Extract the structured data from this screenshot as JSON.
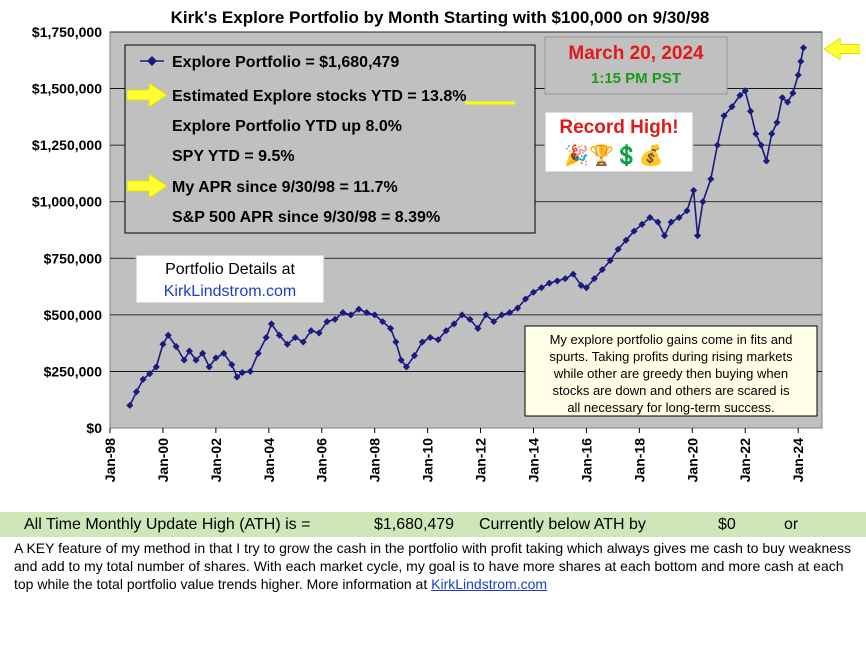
{
  "chart_data": {
    "type": "line",
    "title": "Kirk's Explore Portfolio by Month Starting with $100,000 on 9/30/98",
    "ylim": [
      0,
      1750000
    ],
    "yticks": [
      "$0",
      "$250,000",
      "$500,000",
      "$750,000",
      "$1,000,000",
      "$1,250,000",
      "$1,500,000",
      "$1,750,000"
    ],
    "xticks": [
      "Jan-98",
      "Jan-00",
      "Jan-02",
      "Jan-04",
      "Jan-06",
      "Jan-08",
      "Jan-10",
      "Jan-12",
      "Jan-14",
      "Jan-16",
      "Jan-18",
      "Jan-20",
      "Jan-22",
      "Jan-24"
    ],
    "xlim_years": [
      1998,
      2024.9
    ],
    "grid": "horizontal",
    "series": [
      {
        "name": "Explore Portfolio",
        "color": "#1a1a80",
        "points": [
          [
            1998.75,
            100000
          ],
          [
            1999.0,
            160000
          ],
          [
            1999.25,
            215000
          ],
          [
            1999.5,
            240000
          ],
          [
            1999.75,
            270000
          ],
          [
            2000.0,
            370000
          ],
          [
            2000.2,
            410000
          ],
          [
            2000.5,
            360000
          ],
          [
            2000.8,
            300000
          ],
          [
            2001.0,
            340000
          ],
          [
            2001.25,
            300000
          ],
          [
            2001.5,
            330000
          ],
          [
            2001.75,
            270000
          ],
          [
            2002.0,
            310000
          ],
          [
            2002.3,
            330000
          ],
          [
            2002.6,
            280000
          ],
          [
            2002.8,
            225000
          ],
          [
            2003.0,
            245000
          ],
          [
            2003.3,
            250000
          ],
          [
            2003.6,
            330000
          ],
          [
            2003.9,
            400000
          ],
          [
            2004.1,
            460000
          ],
          [
            2004.4,
            410000
          ],
          [
            2004.7,
            370000
          ],
          [
            2005.0,
            400000
          ],
          [
            2005.3,
            380000
          ],
          [
            2005.6,
            430000
          ],
          [
            2005.9,
            420000
          ],
          [
            2006.2,
            470000
          ],
          [
            2006.5,
            480000
          ],
          [
            2006.8,
            510000
          ],
          [
            2007.1,
            500000
          ],
          [
            2007.4,
            525000
          ],
          [
            2007.7,
            510000
          ],
          [
            2008.0,
            500000
          ],
          [
            2008.3,
            470000
          ],
          [
            2008.6,
            440000
          ],
          [
            2008.8,
            380000
          ],
          [
            2009.0,
            300000
          ],
          [
            2009.2,
            270000
          ],
          [
            2009.5,
            320000
          ],
          [
            2009.8,
            380000
          ],
          [
            2010.1,
            400000
          ],
          [
            2010.4,
            390000
          ],
          [
            2010.7,
            430000
          ],
          [
            2011.0,
            460000
          ],
          [
            2011.3,
            500000
          ],
          [
            2011.6,
            480000
          ],
          [
            2011.9,
            440000
          ],
          [
            2012.2,
            500000
          ],
          [
            2012.5,
            470000
          ],
          [
            2012.8,
            500000
          ],
          [
            2013.1,
            510000
          ],
          [
            2013.4,
            530000
          ],
          [
            2013.7,
            570000
          ],
          [
            2014.0,
            600000
          ],
          [
            2014.3,
            620000
          ],
          [
            2014.6,
            640000
          ],
          [
            2014.9,
            650000
          ],
          [
            2015.2,
            660000
          ],
          [
            2015.5,
            680000
          ],
          [
            2015.8,
            630000
          ],
          [
            2016.0,
            620000
          ],
          [
            2016.3,
            660000
          ],
          [
            2016.6,
            700000
          ],
          [
            2016.9,
            740000
          ],
          [
            2017.2,
            790000
          ],
          [
            2017.5,
            830000
          ],
          [
            2017.8,
            870000
          ],
          [
            2018.1,
            900000
          ],
          [
            2018.4,
            930000
          ],
          [
            2018.7,
            910000
          ],
          [
            2018.95,
            850000
          ],
          [
            2019.2,
            910000
          ],
          [
            2019.5,
            930000
          ],
          [
            2019.8,
            960000
          ],
          [
            2020.05,
            1050000
          ],
          [
            2020.2,
            850000
          ],
          [
            2020.4,
            1000000
          ],
          [
            2020.7,
            1100000
          ],
          [
            2020.95,
            1250000
          ],
          [
            2021.2,
            1380000
          ],
          [
            2021.5,
            1420000
          ],
          [
            2021.8,
            1470000
          ],
          [
            2022.0,
            1490000
          ],
          [
            2022.2,
            1400000
          ],
          [
            2022.4,
            1300000
          ],
          [
            2022.6,
            1250000
          ],
          [
            2022.8,
            1180000
          ],
          [
            2023.0,
            1300000
          ],
          [
            2023.2,
            1350000
          ],
          [
            2023.4,
            1460000
          ],
          [
            2023.6,
            1440000
          ],
          [
            2023.8,
            1480000
          ],
          [
            2024.0,
            1560000
          ],
          [
            2024.1,
            1620000
          ],
          [
            2024.2,
            1680479
          ]
        ]
      }
    ],
    "legend": {
      "lines": [
        "Explore Portfolio  =  $1,680,479",
        "Estimated Explore stocks YTD = ",
        "Explore Portfolio YTD up 8.0%",
        "SPY YTD =  9.5%",
        "My APR since 9/30/98 =  11.7%",
        "S&P 500 APR since 9/30/98 =  8.39%"
      ],
      "ytd_highlight": "13.8%",
      "placement": "top-left"
    },
    "annotations": {
      "date": "March 20, 2024",
      "time": "1:15 PM PST",
      "record": "Record High!",
      "record_icons": "🎉🏆💲💰",
      "details_line1": "Portfolio Details at",
      "details_link": "KirkLindstrom.com",
      "note_lines": [
        "My explore portfolio gains come in fits and",
        "spurts. Taking profits during rising markets",
        "while other are greedy then buying when",
        "stocks are down and others are scared is",
        "all necessary for long-term success."
      ]
    }
  },
  "footer": {
    "ath_label": "All Time Monthly Update High (ATH) is =",
    "ath_value": "$1,680,479",
    "below_label": "Currently below ATH by",
    "below_value": "$0",
    "or_text": "or",
    "paragraph": "A KEY feature of my method in that I try to grow the cash in the portfolio with profit taking which always gives me cash to buy weakness and add to my total number of shares.  With each market cycle, my goal is to have more shares at each bottom and more cash at each top while the total portfolio value trends higher.       More information at ",
    "link": "KirkLindstrom.com"
  },
  "colors": {
    "plot_bg": "#c0c0c0",
    "series": "#1a1a80",
    "arrow": "#ffff00",
    "footer_band": "#cfe6b8"
  }
}
